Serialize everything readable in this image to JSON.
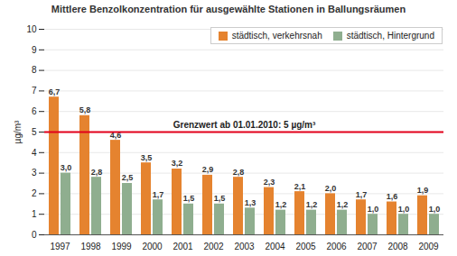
{
  "chart_data": {
    "type": "bar",
    "title": "Mittlere Benzolkonzentration für ausgewählte Stationen in Ballungsräumen",
    "y_label": "µg/m³",
    "categories": [
      "1997",
      "1998",
      "1999",
      "2000",
      "2001",
      "2002",
      "2003",
      "2004",
      "2005",
      "2006",
      "2007",
      "2008",
      "2009"
    ],
    "series": [
      {
        "name": "städtisch, verkehrsnah",
        "color": "#e5832f",
        "values": [
          6.7,
          5.8,
          4.6,
          3.5,
          3.2,
          2.9,
          2.8,
          2.3,
          2.1,
          2.0,
          1.7,
          1.6,
          1.9
        ],
        "value_labels": [
          "6,7",
          "5,8",
          "4,6",
          "3,5",
          "3,2",
          "2,9",
          "2,8",
          "2,3",
          "2,1",
          "2,0",
          "1,7",
          "1,6",
          "1,9"
        ]
      },
      {
        "name": "städtisch, Hintergrund",
        "color": "#8fae8f",
        "values": [
          3.0,
          2.8,
          2.5,
          1.7,
          1.5,
          1.5,
          1.3,
          1.2,
          1.2,
          1.2,
          1.0,
          1.0,
          1.0
        ],
        "value_labels": [
          "3,0",
          "2,8",
          "2,5",
          "1,7",
          "1,5",
          "1,5",
          "1,3",
          "1,2",
          "1,2",
          "1,2",
          "1,0",
          "1,0",
          "1,0"
        ]
      }
    ],
    "ylim": [
      0,
      10
    ],
    "yticks": [
      0,
      1,
      2,
      3,
      4,
      5,
      6,
      7,
      8,
      9,
      10
    ],
    "grid": true,
    "legend": "upper right",
    "data_labels": true,
    "annotations": [
      {
        "y": 5,
        "text": "Grenzwert ab 01.01.2010: 5 µg/m³",
        "color": "#e2001a"
      }
    ]
  }
}
